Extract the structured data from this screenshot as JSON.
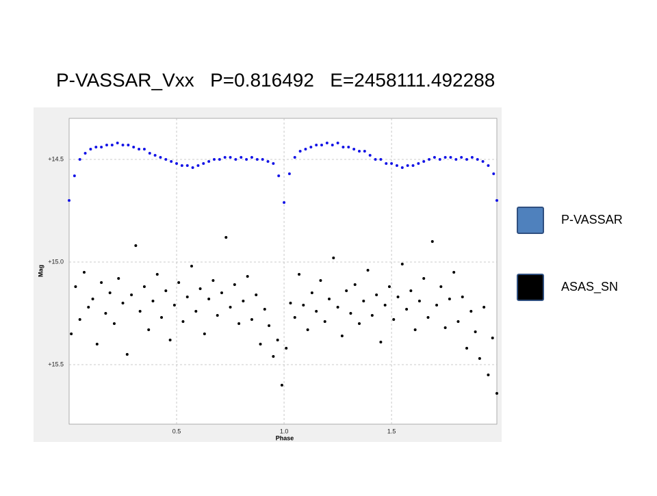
{
  "chart_data": {
    "type": "scatter",
    "title": "P-VASSAR_Vxx   P=0.816492   E=2458111.492288",
    "xlabel": "Phase",
    "ylabel": "Mag",
    "xlim": [
      0,
      1.99
    ],
    "ylim": [
      15.79,
      14.3
    ],
    "xticks": [
      0.5,
      {
        "value": 1,
        "label": "1.0"
      },
      1.5
    ],
    "yticks": [
      {
        "value": 14.5,
        "label": "+14.5"
      },
      {
        "value": 15.0,
        "label": "+15.0"
      },
      {
        "value": 15.5,
        "label": "+15.5"
      }
    ],
    "grid": true,
    "legend": "right",
    "series": [
      {
        "name": "P-VASSAR",
        "color": "#1414e6",
        "legend_color": "#4f81bd",
        "x": [
          0,
          0.025,
          0.05,
          0.075,
          0.1,
          0.125,
          0.15,
          0.175,
          0.2,
          0.225,
          0.25,
          0.275,
          0.3,
          0.325,
          0.35,
          0.375,
          0.4,
          0.425,
          0.45,
          0.475,
          0.5,
          0.525,
          0.55,
          0.575,
          0.6,
          0.625,
          0.65,
          0.675,
          0.7,
          0.725,
          0.75,
          0.775,
          0.8,
          0.825,
          0.85,
          0.875,
          0.9,
          0.925,
          0.95,
          0.975,
          1,
          1.025,
          1.05,
          1.075,
          1.1,
          1.125,
          1.15,
          1.175,
          1.2,
          1.225,
          1.25,
          1.275,
          1.3,
          1.325,
          1.35,
          1.375,
          1.4,
          1.425,
          1.45,
          1.475,
          1.5,
          1.525,
          1.55,
          1.575,
          1.6,
          1.625,
          1.65,
          1.675,
          1.7,
          1.725,
          1.75,
          1.775,
          1.8,
          1.825,
          1.85,
          1.875,
          1.9,
          1.925,
          1.95,
          1.975,
          1.99
        ],
        "values": [
          14.7,
          14.58,
          14.5,
          14.47,
          14.45,
          14.44,
          14.44,
          14.43,
          14.43,
          14.42,
          14.43,
          14.43,
          14.44,
          14.45,
          14.45,
          14.47,
          14.48,
          14.49,
          14.5,
          14.51,
          14.52,
          14.53,
          14.53,
          14.54,
          14.53,
          14.52,
          14.51,
          14.5,
          14.5,
          14.49,
          14.49,
          14.5,
          14.49,
          14.5,
          14.49,
          14.5,
          14.5,
          14.51,
          14.52,
          14.58,
          14.71,
          14.57,
          14.49,
          14.46,
          14.45,
          14.44,
          14.43,
          14.43,
          14.42,
          14.43,
          14.42,
          14.44,
          14.44,
          14.45,
          14.46,
          14.46,
          14.48,
          14.5,
          14.5,
          14.52,
          14.52,
          14.53,
          14.54,
          14.53,
          14.53,
          14.52,
          14.51,
          14.5,
          14.49,
          14.5,
          14.49,
          14.49,
          14.5,
          14.49,
          14.5,
          14.49,
          14.5,
          14.51,
          14.53,
          14.57,
          14.7
        ]
      },
      {
        "name": "ASAS_SN",
        "color": "#000000",
        "legend_color": "#000000",
        "x": [
          0.01,
          0.03,
          0.05,
          0.07,
          0.09,
          0.11,
          0.13,
          0.15,
          0.17,
          0.19,
          0.21,
          0.23,
          0.25,
          0.27,
          0.29,
          0.31,
          0.33,
          0.35,
          0.37,
          0.39,
          0.41,
          0.43,
          0.45,
          0.47,
          0.49,
          0.51,
          0.53,
          0.55,
          0.57,
          0.59,
          0.61,
          0.63,
          0.65,
          0.67,
          0.69,
          0.71,
          0.73,
          0.75,
          0.77,
          0.79,
          0.81,
          0.83,
          0.85,
          0.87,
          0.89,
          0.91,
          0.93,
          0.95,
          0.97,
          0.99,
          1.01,
          1.03,
          1.05,
          1.07,
          1.09,
          1.11,
          1.13,
          1.15,
          1.17,
          1.19,
          1.21,
          1.23,
          1.25,
          1.27,
          1.29,
          1.31,
          1.33,
          1.35,
          1.37,
          1.39,
          1.41,
          1.43,
          1.45,
          1.47,
          1.49,
          1.51,
          1.53,
          1.55,
          1.57,
          1.59,
          1.61,
          1.63,
          1.65,
          1.67,
          1.69,
          1.71,
          1.73,
          1.75,
          1.77,
          1.79,
          1.81,
          1.83,
          1.85,
          1.87,
          1.89,
          1.91,
          1.93,
          1.95,
          1.97,
          1.99
        ],
        "values": [
          15.35,
          15.12,
          15.28,
          15.05,
          15.22,
          15.18,
          15.4,
          15.1,
          15.25,
          15.15,
          15.3,
          15.08,
          15.2,
          15.45,
          15.16,
          14.92,
          15.24,
          15.12,
          15.33,
          15.19,
          15.06,
          15.27,
          15.14,
          15.38,
          15.21,
          15.1,
          15.29,
          15.17,
          15.02,
          15.24,
          15.13,
          15.35,
          15.18,
          15.09,
          15.26,
          15.15,
          14.88,
          15.22,
          15.11,
          15.3,
          15.19,
          15.07,
          15.28,
          15.16,
          15.4,
          15.23,
          15.31,
          15.46,
          15.38,
          15.6,
          15.42,
          15.2,
          15.27,
          15.06,
          15.21,
          15.33,
          15.15,
          15.24,
          15.09,
          15.29,
          15.18,
          14.98,
          15.22,
          15.36,
          15.14,
          15.25,
          15.11,
          15.3,
          15.19,
          15.04,
          15.26,
          15.16,
          15.39,
          15.21,
          15.12,
          15.28,
          15.17,
          15.01,
          15.23,
          15.14,
          15.33,
          15.19,
          15.08,
          15.27,
          14.9,
          15.21,
          15.12,
          15.32,
          15.18,
          15.05,
          15.29,
          15.17,
          15.42,
          15.24,
          15.34,
          15.47,
          15.22,
          15.55,
          15.37,
          15.64
        ]
      }
    ]
  }
}
